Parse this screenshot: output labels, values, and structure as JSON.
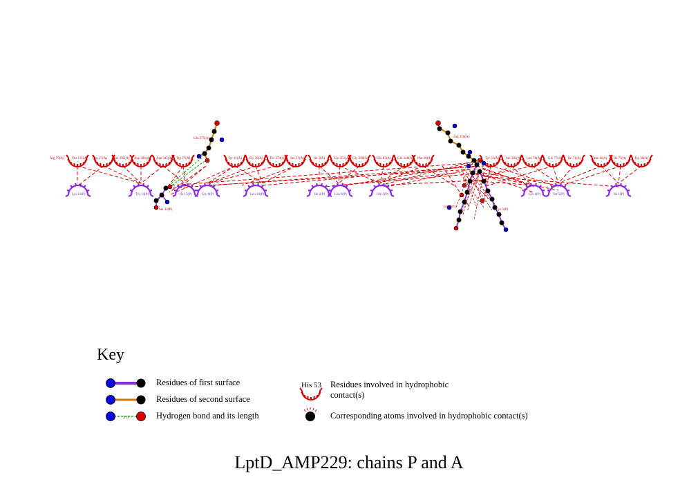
{
  "title": "LptD_AMP229: chains P and A",
  "colors": {
    "hydrophobic": "#cc0000",
    "first_surface": "#8a2be2",
    "second_surface": "#cc7a00",
    "hbond": "#009900",
    "nitrogen": "#0000dd",
    "oxygen": "#dd0000",
    "carbon": "#000000"
  },
  "residues_chain_A": [
    "Arg 79(A)",
    "Thr 131(A)",
    "Leu 27(A)",
    "Ser 392(A)",
    "Asp 390(A)",
    "Asp 345(A)",
    "Trp 27(A)",
    "Glu 275(A)",
    "Tyr 11(A)",
    "Gly 36(A)",
    "Thr 370(A)",
    "Ser 37(A)",
    "Ile 3(A)",
    "Glu 351(A)",
    "Gly 396(A)",
    "Glu 83(A)",
    "Gln 320(A)",
    "Phe 39(A)",
    "Arg 319(A)",
    "Tyr 31(A)",
    "Ser 302(A)",
    "Leu 78(A)",
    "Gly 77(A)",
    "Ile 71(A)",
    "Ala 32(A)",
    "Ile 73(A)",
    "Trp 30(A)"
  ],
  "residues_chain_P": [
    "Lys 11(P)",
    "Tyr 14(P)",
    "Ile 15(P)",
    "Gly 9(P)",
    "Leu 10(P)",
    "Ile 2(P)",
    "Leu 6(P)",
    "Gln 3(P)",
    "Gly 4(P)",
    "Val 5(P)",
    "Ile 1(P)"
  ],
  "ligand_labels": [
    "Glu 275(A)",
    "Ser 12(P)",
    "Arg 319(A)",
    "Gly 8(P)",
    "Lys 5(P)"
  ],
  "key": {
    "heading": "Key",
    "first_surface": "Residues of first surface",
    "second_surface": "Residues of second surface",
    "hbond": "Hydrogen bond and its length",
    "hbond_length": "3.0",
    "hydrophobic_example": "His 53",
    "hydrophobic_line1": "Residues involved in hydrophobic",
    "hydrophobic_line2": "contact(s)",
    "atoms": "Corresponding atoms involved in hydrophobic contact(s)"
  }
}
